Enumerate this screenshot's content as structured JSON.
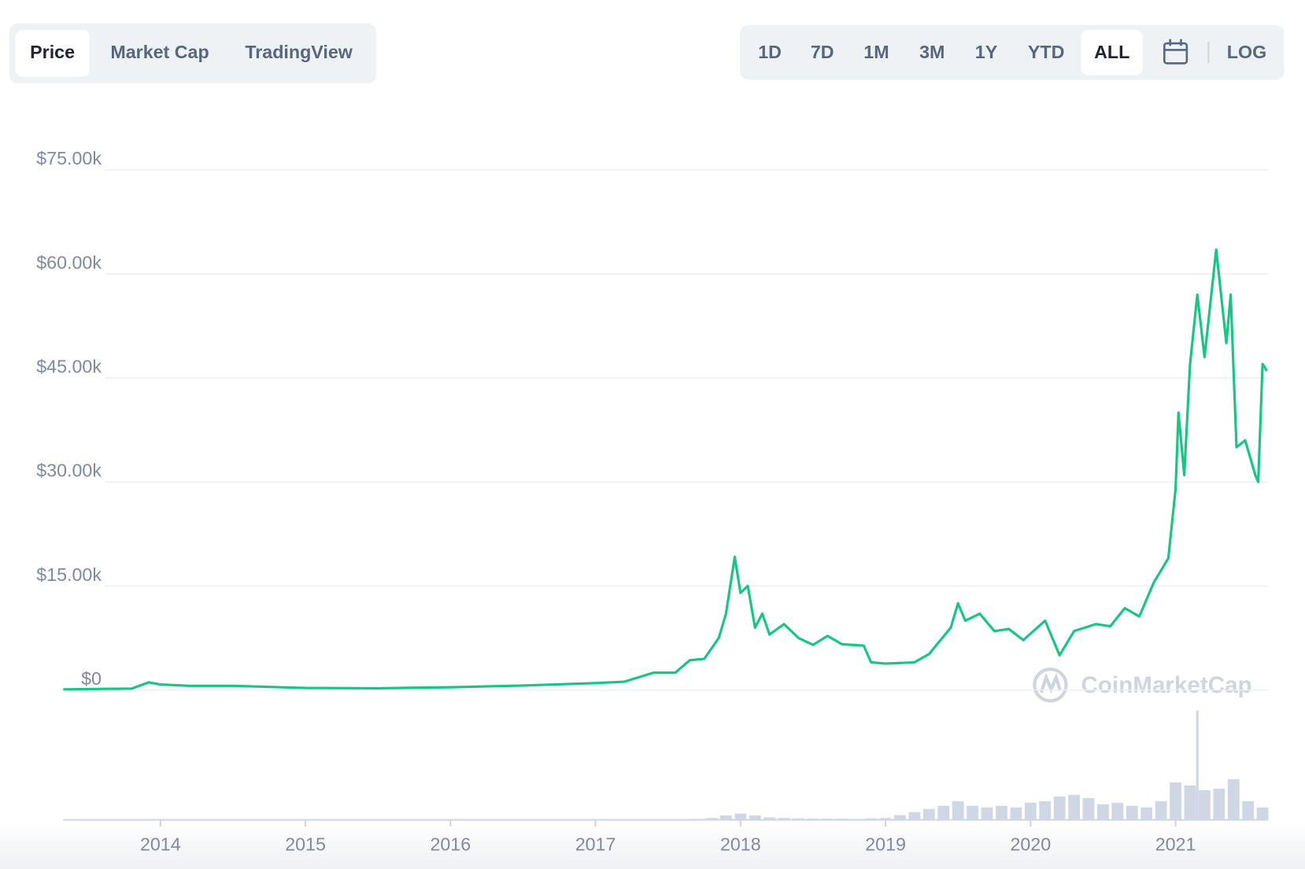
{
  "tabs": [
    "Price",
    "Market Cap",
    "TradingView"
  ],
  "active_tab": 0,
  "ranges": [
    "1D",
    "7D",
    "1M",
    "3M",
    "1Y",
    "YTD",
    "ALL"
  ],
  "active_range": 6,
  "log_button": "LOG",
  "watermark": "CoinMarketCap",
  "chart_data": {
    "type": "line",
    "series": [
      {
        "color": "#16c784",
        "x": [
          2013.33,
          2013.8,
          2013.92,
          2014.0,
          2014.2,
          2014.5,
          2015.0,
          2015.5,
          2016.0,
          2016.5,
          2017.0,
          2017.2,
          2017.4,
          2017.55,
          2017.65,
          2017.75,
          2017.85,
          2017.9,
          2017.96,
          2018.0,
          2018.05,
          2018.1,
          2018.15,
          2018.2,
          2018.3,
          2018.4,
          2018.5,
          2018.6,
          2018.7,
          2018.85,
          2018.9,
          2019.0,
          2019.2,
          2019.3,
          2019.45,
          2019.5,
          2019.55,
          2019.65,
          2019.75,
          2019.85,
          2019.95,
          2020.1,
          2020.2,
          2020.3,
          2020.45,
          2020.55,
          2020.65,
          2020.75,
          2020.85,
          2020.95,
          2021.0,
          2021.02,
          2021.06,
          2021.1,
          2021.15,
          2021.2,
          2021.28,
          2021.35,
          2021.38,
          2021.42,
          2021.48,
          2021.55,
          2021.57,
          2021.6,
          2021.63
        ],
        "values": [
          100,
          200,
          1100,
          800,
          600,
          600,
          300,
          250,
          400,
          650,
          1000,
          1200,
          2500,
          2500,
          4300,
          4500,
          7500,
          11000,
          19200,
          14000,
          15000,
          9000,
          11000,
          8000,
          9500,
          7500,
          6500,
          7800,
          6600,
          6400,
          4000,
          3800,
          4000,
          5200,
          9000,
          12500,
          10000,
          11000,
          8500,
          8800,
          7200,
          10000,
          5000,
          8500,
          9500,
          9200,
          11800,
          10600,
          15500,
          19000,
          29000,
          40000,
          31000,
          47000,
          57000,
          48000,
          63500,
          50000,
          57000,
          35000,
          36000,
          31000,
          30000,
          47000,
          46000
        ]
      }
    ],
    "volume": {
      "color": "#cfd6e4",
      "x": [
        2017.7,
        2017.8,
        2017.9,
        2018.0,
        2018.1,
        2018.2,
        2018.3,
        2018.4,
        2018.5,
        2018.6,
        2018.7,
        2018.8,
        2018.9,
        2019.0,
        2019.1,
        2019.2,
        2019.3,
        2019.4,
        2019.5,
        2019.6,
        2019.7,
        2019.8,
        2019.9,
        2020.0,
        2020.1,
        2020.2,
        2020.3,
        2020.4,
        2020.5,
        2020.6,
        2020.7,
        2020.8,
        2020.9,
        2021.0,
        2021.1,
        2021.15,
        2021.2,
        2021.3,
        2021.4,
        2021.5,
        2021.6
      ],
      "values": [
        3,
        6,
        14,
        20,
        14,
        8,
        6,
        5,
        4,
        4,
        4,
        3,
        5,
        6,
        15,
        25,
        35,
        45,
        60,
        45,
        40,
        45,
        40,
        55,
        60,
        75,
        80,
        70,
        50,
        55,
        45,
        40,
        60,
        120,
        110,
        350,
        95,
        100,
        130,
        60,
        40
      ],
      "ylim": [
        0,
        360
      ]
    },
    "xlim": [
      2013.33,
      2021.64
    ],
    "xticks": [
      2014,
      2015,
      2016,
      2017,
      2018,
      2019,
      2020,
      2021
    ],
    "ylim": [
      0,
      75000
    ],
    "yticks": [
      {
        "value": 0,
        "label": "$0"
      },
      {
        "value": 15000,
        "label": "$15.00k"
      },
      {
        "value": 30000,
        "label": "$30.00k"
      },
      {
        "value": 45000,
        "label": "$45.00k"
      },
      {
        "value": 60000,
        "label": "$60.00k"
      },
      {
        "value": 75000,
        "label": "$75.00k"
      }
    ],
    "grid": true
  }
}
